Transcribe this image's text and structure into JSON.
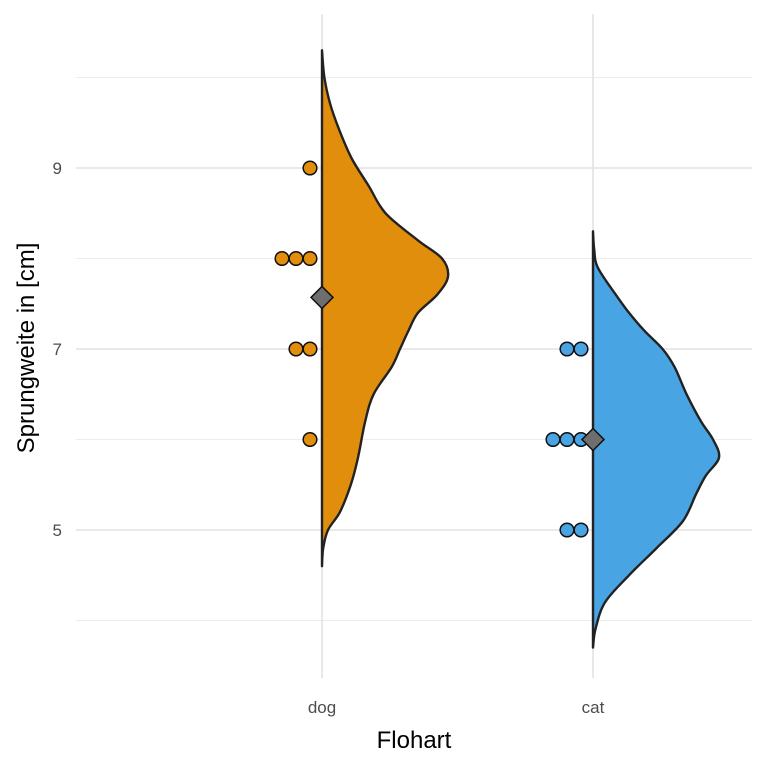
{
  "chart_data": {
    "type": "violin",
    "xlabel": "Flohart",
    "ylabel": "Sprungweite in [cm]",
    "categories": [
      "dog",
      "cat"
    ],
    "ylim": [
      3.5,
      10.5
    ],
    "yticks": [
      5,
      7,
      9
    ],
    "grid": true,
    "series": [
      {
        "category": "dog",
        "color": "#E08E0B",
        "points": [
          9,
          8,
          8,
          8,
          7,
          7,
          6
        ],
        "mean": 7.57,
        "density": [
          [
            4.6,
            0
          ],
          [
            4.8,
            0.01
          ],
          [
            5.0,
            0.05
          ],
          [
            5.2,
            0.15
          ],
          [
            5.5,
            0.24
          ],
          [
            5.8,
            0.3
          ],
          [
            6.2,
            0.36
          ],
          [
            6.5,
            0.43
          ],
          [
            6.8,
            0.58
          ],
          [
            7.0,
            0.65
          ],
          [
            7.2,
            0.72
          ],
          [
            7.4,
            0.8
          ],
          [
            7.6,
            0.96
          ],
          [
            7.8,
            1.05
          ],
          [
            8.0,
            1.0
          ],
          [
            8.2,
            0.8
          ],
          [
            8.5,
            0.53
          ],
          [
            8.8,
            0.39
          ],
          [
            9.1,
            0.25
          ],
          [
            9.4,
            0.15
          ],
          [
            9.7,
            0.07
          ],
          [
            10.0,
            0.02
          ],
          [
            10.3,
            0
          ]
        ]
      },
      {
        "category": "cat",
        "color": "#48A4E2",
        "points": [
          7,
          7,
          6,
          6,
          6,
          5,
          5
        ],
        "mean": 6.0,
        "density": [
          [
            3.7,
            0
          ],
          [
            3.9,
            0.02
          ],
          [
            4.2,
            0.1
          ],
          [
            4.5,
            0.3
          ],
          [
            4.8,
            0.53
          ],
          [
            5.1,
            0.75
          ],
          [
            5.4,
            0.86
          ],
          [
            5.6,
            0.94
          ],
          [
            5.8,
            1.05
          ],
          [
            6.0,
            1.0
          ],
          [
            6.2,
            0.9
          ],
          [
            6.5,
            0.78
          ],
          [
            6.8,
            0.68
          ],
          [
            7.0,
            0.58
          ],
          [
            7.2,
            0.43
          ],
          [
            7.4,
            0.3
          ],
          [
            7.6,
            0.19
          ],
          [
            7.9,
            0.04
          ],
          [
            8.1,
            0.01
          ],
          [
            8.3,
            0
          ]
        ]
      }
    ]
  }
}
